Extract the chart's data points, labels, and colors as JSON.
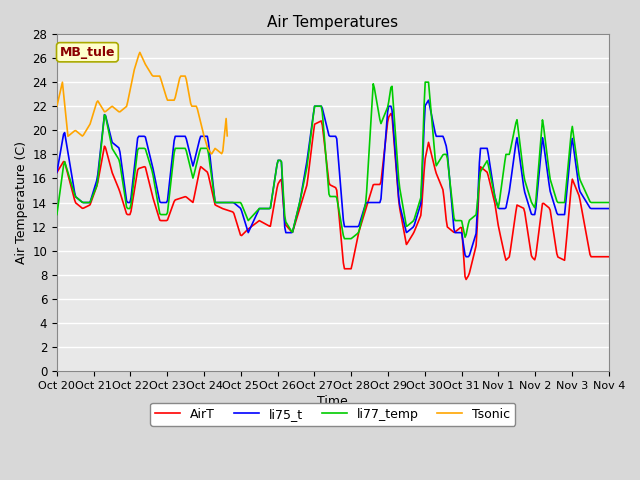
{
  "title": "Air Temperatures",
  "xlabel": "Time",
  "ylabel": "Air Temperature (C)",
  "ylim": [
    0,
    28
  ],
  "yticks": [
    0,
    2,
    4,
    6,
    8,
    10,
    12,
    14,
    16,
    18,
    20,
    22,
    24,
    26,
    28
  ],
  "xtick_labels": [
    "Oct 20",
    "Oct 21",
    "Oct 22",
    "Oct 23",
    "Oct 24",
    "Oct 25",
    "Oct 26",
    "Oct 27",
    "Oct 28",
    "Oct 29",
    "Oct 30",
    "Oct 31",
    "Nov 1",
    "Nov 2",
    "Nov 3",
    "Nov 4"
  ],
  "annotation_text": "MB_tule",
  "annotation_color": "#8B0000",
  "annotation_bg": "#FFFFCC",
  "annotation_border": "#AAAA00",
  "colors": {
    "AirT": "#FF0000",
    "li75_t": "#0000FF",
    "li77_temp": "#00CC00",
    "Tsonic": "#FFA500"
  },
  "line_width": 1.2,
  "fig_bg": "#D8D8D8",
  "plot_bg": "#E8E8E8",
  "grid_color": "#FFFFFF"
}
